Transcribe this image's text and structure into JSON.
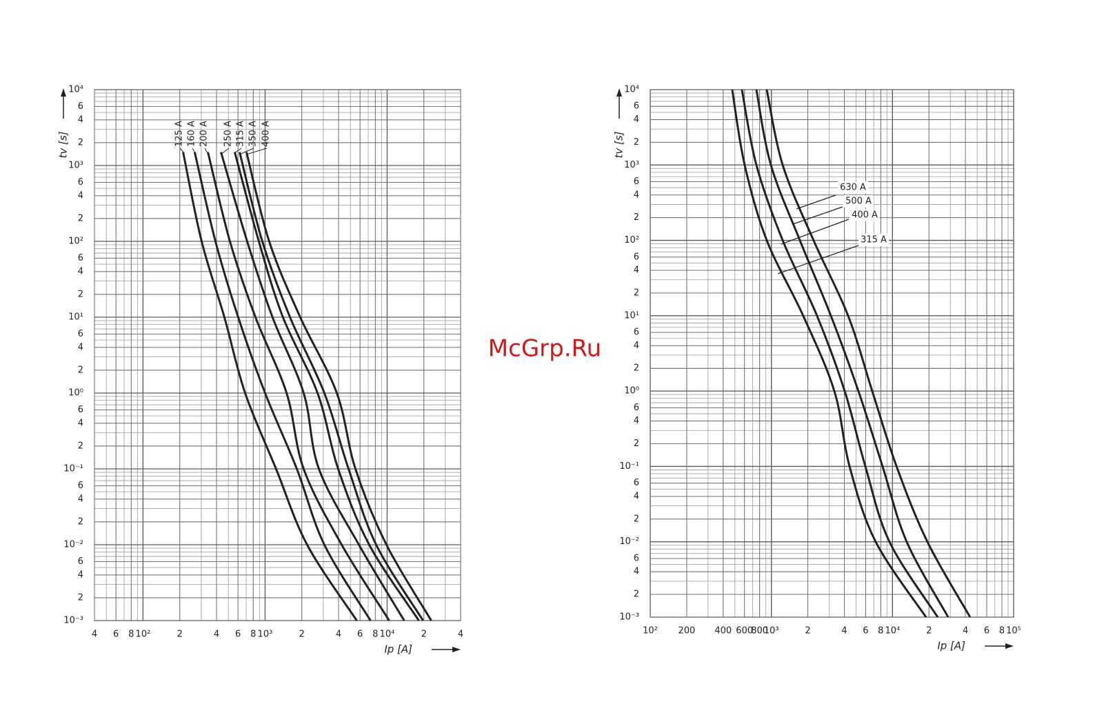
{
  "watermark": "McGrp.Ru",
  "chart_data": [
    {
      "type": "line",
      "x_label": "Ip [A]",
      "y_label": "tv [s]",
      "log_x": true,
      "log_y": true,
      "grid": true,
      "xlim": [
        40,
        40000
      ],
      "ylim": [
        0.001,
        10000
      ],
      "xticks": [
        {
          "value": 40,
          "label": "4"
        },
        {
          "value": 60,
          "label": "6"
        },
        {
          "value": 80,
          "label": "8"
        },
        {
          "value": 100,
          "label": "10²"
        },
        {
          "value": 200,
          "label": "2"
        },
        {
          "value": 400,
          "label": "4"
        },
        {
          "value": 600,
          "label": "6"
        },
        {
          "value": 800,
          "label": "8"
        },
        {
          "value": 1000,
          "label": "10³"
        },
        {
          "value": 2000,
          "label": "2"
        },
        {
          "value": 4000,
          "label": "4"
        },
        {
          "value": 6000,
          "label": "6"
        },
        {
          "value": 8000,
          "label": "8"
        },
        {
          "value": 10000,
          "label": "10⁴"
        },
        {
          "value": 20000,
          "label": "2"
        },
        {
          "value": 40000,
          "label": "4"
        }
      ],
      "yticks": [
        {
          "value": 10000,
          "label": "10⁴"
        },
        {
          "value": 6000,
          "label": "6"
        },
        {
          "value": 4000,
          "label": "4"
        },
        {
          "value": 2000,
          "label": "2"
        },
        {
          "value": 1000,
          "label": "10³"
        },
        {
          "value": 600,
          "label": "6"
        },
        {
          "value": 400,
          "label": "4"
        },
        {
          "value": 200,
          "label": "2"
        },
        {
          "value": 100,
          "label": "10²"
        },
        {
          "value": 60,
          "label": "6"
        },
        {
          "value": 40,
          "label": "4"
        },
        {
          "value": 20,
          "label": "2"
        },
        {
          "value": 10,
          "label": "10¹"
        },
        6,
        4,
        2,
        {
          "value": 1,
          "label": "10⁰"
        },
        {
          "value": 0.6,
          "label": "6"
        },
        {
          "value": 0.4,
          "label": "4"
        },
        {
          "value": 0.2,
          "label": "2"
        },
        {
          "value": 0.1,
          "label": "10⁻¹"
        },
        {
          "value": 0.06,
          "label": "6"
        },
        {
          "value": 0.04,
          "label": "4"
        },
        {
          "value": 0.02,
          "label": "2"
        },
        {
          "value": 0.01,
          "label": "10⁻²"
        },
        {
          "value": 0.006,
          "label": "6"
        },
        {
          "value": 0.004,
          "label": "4"
        },
        {
          "value": 0.002,
          "label": "2"
        },
        {
          "value": 0.001,
          "label": "10⁻³"
        }
      ],
      "series": [
        {
          "name": "125 A",
          "color": "#222222",
          "x": [
            213,
            302,
            464,
            686,
            1230,
            2210,
            5640
          ],
          "values": [
            1500,
            100,
            10,
            1,
            0.1,
            0.01,
            0.001
          ]
        },
        {
          "name": "160 A",
          "color": "#222222",
          "x": [
            265,
            392,
            602,
            1000,
            1820,
            3060,
            7310
          ],
          "values": [
            1500,
            100,
            10,
            1,
            0.1,
            0.01,
            0.001
          ]
        },
        {
          "name": "200 A",
          "color": "#222222",
          "x": [
            340,
            515,
            834,
            1500,
            2070,
            4240,
            10400
          ],
          "values": [
            1500,
            100,
            10,
            1,
            0.1,
            0.01,
            0.001
          ]
        },
        {
          "name": "250 A",
          "color": "#222222",
          "x": [
            435,
            713,
            1150,
            2070,
            2760,
            5870,
            13800
          ],
          "values": [
            1500,
            100,
            10,
            1,
            0.1,
            0.01,
            0.001
          ]
        },
        {
          "name": "315 A",
          "color": "#222222",
          "x": [
            564,
            889,
            1400,
            2690,
            3970,
            7130,
            18200
          ],
          "values": [
            1500,
            100,
            10,
            1,
            0.1,
            0.01,
            0.001
          ]
        },
        {
          "name": "350 A",
          "color": "#222222",
          "x": [
            618,
            949,
            1600,
            3060,
            4830,
            8130,
            19700
          ],
          "values": [
            1500,
            100,
            10,
            1,
            0.1,
            0.01,
            0.001
          ]
        },
        {
          "name": "400 A",
          "color": "#222222",
          "x": [
            704,
            1080,
            1940,
            3870,
            5500,
            9870,
            23000
          ],
          "values": [
            1500,
            100,
            10,
            1,
            0.1,
            0.01,
            0.001
          ]
        }
      ]
    },
    {
      "type": "line",
      "x_label": "Ip [A]",
      "y_label": "tv [s]",
      "log_x": true,
      "log_y": true,
      "grid": true,
      "xlim": [
        100,
        100000
      ],
      "ylim": [
        0.001,
        10000
      ],
      "xticks": [
        {
          "value": 100,
          "label": "10²"
        },
        200,
        400,
        600,
        800,
        {
          "value": 1000,
          "label": "10³"
        },
        {
          "value": 2000,
          "label": "2"
        },
        {
          "value": 4000,
          "label": "4"
        },
        {
          "value": 6000,
          "label": "6"
        },
        {
          "value": 8000,
          "label": "8"
        },
        {
          "value": 10000,
          "label": "10⁴"
        },
        {
          "value": 20000,
          "label": "2"
        },
        {
          "value": 40000,
          "label": "4"
        },
        {
          "value": 60000,
          "label": "6"
        },
        {
          "value": 80000,
          "label": "8"
        },
        {
          "value": 100000,
          "label": "10⁵"
        }
      ],
      "yticks": [
        {
          "value": 10000,
          "label": "10⁴"
        },
        {
          "value": 6000,
          "label": "6"
        },
        {
          "value": 4000,
          "label": "4"
        },
        {
          "value": 2000,
          "label": "2"
        },
        {
          "value": 1000,
          "label": "10³"
        },
        {
          "value": 600,
          "label": "6"
        },
        {
          "value": 400,
          "label": "4"
        },
        {
          "value": 200,
          "label": "2"
        },
        {
          "value": 100,
          "label": "10²"
        },
        {
          "value": 60,
          "label": "6"
        },
        {
          "value": 40,
          "label": "4"
        },
        {
          "value": 20,
          "label": "2"
        },
        {
          "value": 10,
          "label": "10¹"
        },
        6,
        4,
        2,
        {
          "value": 1,
          "label": "10⁰"
        },
        {
          "value": 0.6,
          "label": "6"
        },
        {
          "value": 0.4,
          "label": "4"
        },
        {
          "value": 0.2,
          "label": "2"
        },
        {
          "value": 0.1,
          "label": "10⁻¹"
        },
        {
          "value": 0.06,
          "label": "6"
        },
        {
          "value": 0.04,
          "label": "4"
        },
        {
          "value": 0.02,
          "label": "2"
        },
        {
          "value": 0.01,
          "label": "10⁻²"
        },
        {
          "value": 0.006,
          "label": "6"
        },
        {
          "value": 0.004,
          "label": "4"
        },
        {
          "value": 0.002,
          "label": "2"
        },
        {
          "value": 0.001,
          "label": "10⁻³"
        }
      ],
      "series": [
        {
          "name": "315 A",
          "color": "#222222",
          "x": [
            475,
            602,
            916,
            1830,
            3310,
            4420,
            7260,
            18900
          ],
          "values": [
            10000,
            1000,
            100,
            10,
            1,
            0.1,
            0.01,
            0.001
          ]
        },
        {
          "name": "400 A",
          "color": "#222222",
          "x": [
            571,
            752,
            1240,
            2380,
            4030,
            5970,
            9440,
            23600
          ],
          "values": [
            10000,
            1000,
            100,
            10,
            1,
            0.1,
            0.01,
            0.001
          ]
        },
        {
          "name": "500 A",
          "color": "#222222",
          "x": [
            752,
            991,
            1720,
            3100,
            5230,
            8280,
            13100,
            28800
          ],
          "values": [
            10000,
            1000,
            100,
            10,
            1,
            0.1,
            0.01,
            0.001
          ]
        },
        {
          "name": "630 A",
          "color": "#222222",
          "x": [
            916,
            1240,
            2230,
            4300,
            6800,
            10800,
            19400,
            43700
          ],
          "values": [
            10000,
            1000,
            100,
            10,
            1,
            0.1,
            0.01,
            0.001
          ]
        }
      ]
    }
  ]
}
